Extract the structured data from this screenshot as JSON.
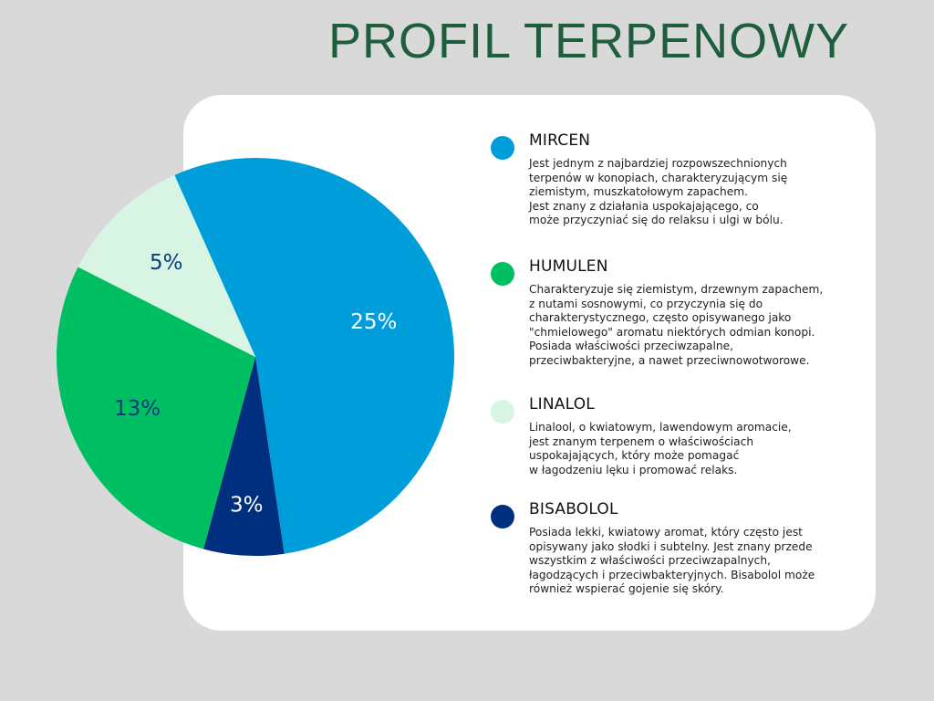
{
  "title": "PROFIL TERPENOWY",
  "chart_data": {
    "type": "pie",
    "title": "",
    "slices": [
      {
        "label": "MIRCEN",
        "value": 25,
        "value_label": "25%",
        "color": "#009ddb",
        "label_color": "#ffffff"
      },
      {
        "label": "BISABOLOL",
        "value": 3,
        "value_label": "3%",
        "color": "#012f7f",
        "label_color": "#ffffff"
      },
      {
        "label": "HUMULEN",
        "value": 13,
        "value_label": "13%",
        "color": "#00bf63",
        "label_color": "#0b3a7a"
      },
      {
        "label": "LINALOL",
        "value": 5,
        "value_label": "5%",
        "color": "#d7f5e2",
        "label_color": "#0b3a7a"
      }
    ],
    "legend_position": "right"
  },
  "legend": [
    {
      "name": "MIRCEN",
      "color": "#009ddb",
      "description": "Jest jednym z najbardziej rozpowszechnionych\nterpenów w konopiach, charakteryzującym się\nziemistym, muszkatołowym zapachem.\nJest znany z działania uspokajającego, co\nmoże przyczyniać się do relaksu i ulgi w bólu."
    },
    {
      "name": "HUMULEN",
      "color": "#00bf63",
      "description": "Charakteryzuje się ziemistym, drzewnym zapachem,\nz nutami sosnowymi, co przyczynia się do\ncharakterystycznego, często opisywanego jako\n\"chmielowego\" aromatu niektórych odmian konopi.\nPosiada właściwości przeciwzapalne,\nprzeciwbakteryjne, a nawet przeciwnowotworowe."
    },
    {
      "name": "LINALOL",
      "color": "#d7f5e2",
      "description": "Linalool, o kwiatowym, lawendowym aromacie,\njest znanym terpenem o właściwościach\nuspokajających, który może pomagać\nw łagodzeniu lęku i promować relaks."
    },
    {
      "name": "BISABOLOL",
      "color": "#012f7f",
      "description": "Posiada lekki, kwiatowy aromat, który często jest\nopisywany jako słodki i subtelny. Jest znany przede\nwszystkim z właściwości przeciwzapalnych,\nłagodzących i przeciwbakteryjnych. Bisabolol może\nrównież wspierać gojenie się skóry."
    }
  ]
}
